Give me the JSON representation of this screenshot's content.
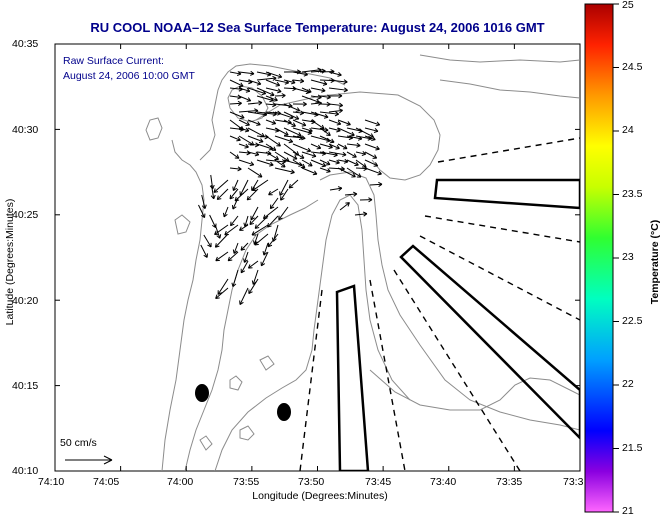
{
  "title": "RU COOL  NOAA–12  Sea Surface Temperature:  August 24, 2006 1016 GMT",
  "annotation": {
    "line1": "Raw Surface Current:",
    "line2": "August 24, 2006 10:00 GMT"
  },
  "axes": {
    "xlabel": "Longitude (Degrees:Minutes)",
    "ylabel": "Latitude (Degrees:Minutes)",
    "xticks": [
      "74:10",
      "74:05",
      "74:00",
      "73:55",
      "73:50",
      "73:45",
      "73:40",
      "73:35",
      "73:3"
    ],
    "yticks": [
      "40:35",
      "40:30",
      "40:25",
      "40:20",
      "40:15",
      "40:10"
    ]
  },
  "colorbar": {
    "title": "Temperature (°C)",
    "ticks": [
      "25",
      "24.5",
      "24",
      "23.5",
      "23",
      "22.5",
      "22",
      "21.5",
      "21"
    ],
    "min": 21,
    "max": 25
  },
  "scale_label": "50 cm/s",
  "colors": {
    "title_text": "#00008b",
    "land": "#ffffff",
    "contour": "#8c8c8c",
    "vectors": "#000000"
  }
}
